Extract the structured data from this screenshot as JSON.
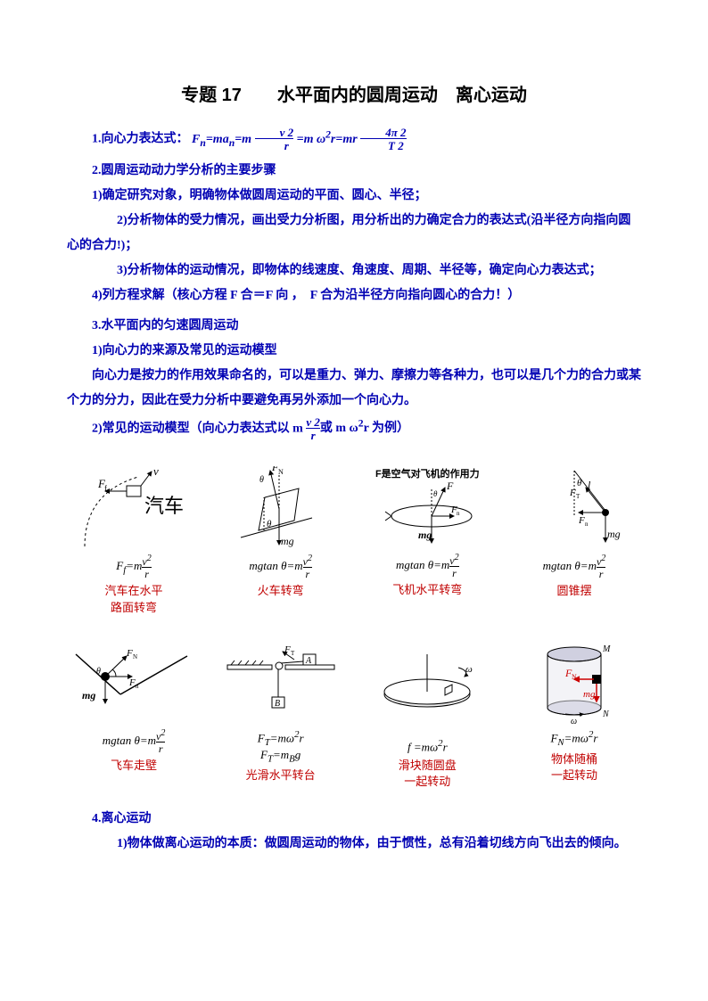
{
  "title": "专题 17　　水平面内的圆周运动　离心运动",
  "s1": {
    "head": "1.向心力表达式：",
    "formula_html": "F<sub>n</sub>=ma<sub>n</sub>=m <span class='frac'><span class='num'>v 2</span><span class='den'>r</span></span> =m ω<sup>2</sup>r=mr <span class='frac'><span class='num'>4π 2</span><span class='den'>T 2</span></span>"
  },
  "s2": {
    "head": "2.圆周运动动力学分析的主要步骤",
    "p1": "1)确定研究对象，明确物体做圆周运动的平面、圆心、半径；",
    "p2": "2)分析物体的受力情况，画出受力分析图，用分析出的力确定合力的表达式(沿半径方向指向圆心的合力!)；",
    "p3": "3)分析物体的运动情况，即物体的线速度、角速度、周期、半径等，确定向心力表达式；",
    "p4": "4)列方程求解（核心方程 F 合＝F 向 ，　F 合为沿半径方向指向圆心的合力！）"
  },
  "s3": {
    "head": "3.水平面内的匀速圆周运动",
    "p1": "1)向心力的来源及常见的运动模型",
    "p2": "向心力是按力的作用效果命名的，可以是重力、弹力、摩擦力等各种力，也可以是几个力的合力或某个力的分力，因此在受力分析中要避免再另外添加一个向心力。",
    "p3a": "2)常见的运动模型（向心力表达式以 m ",
    "p3b": "或 m ω<sup>2</sup>r 为例）",
    "frac_num": "v 2",
    "frac_den": "r"
  },
  "models_row1": [
    {
      "name": "car-turn",
      "formula": "F<sub>f</sub>=m<span class='frac'><span class='num'>v<sup>2</sup></span><span class='den'>r</span></span>",
      "label": "汽车在水平<br>路面转弯"
    },
    {
      "name": "train-turn",
      "formula": "mgtan θ=m<span class='frac'><span class='num'>v<sup>2</sup></span><span class='den'>r</span></span>",
      "label": "火车转弯"
    },
    {
      "name": "plane-turn",
      "formula": "mgtan θ=m<span class='frac'><span class='num'>v<sup>2</sup></span><span class='den'>r</span></span>",
      "label": "飞机水平转弯",
      "toplabel": "F是空气对飞机的作用力"
    },
    {
      "name": "conical-pendulum",
      "formula": "mgtan θ=m<span class='frac'><span class='num'>v<sup>2</sup></span><span class='den'>r</span></span>",
      "label": "圆锥摆"
    }
  ],
  "models_row2": [
    {
      "name": "wall-of-death",
      "formula": "mgtan θ=m<span class='frac'><span class='num'>v<sup>2</sup></span><span class='den'>r</span></span>",
      "label": "飞车走壁"
    },
    {
      "name": "smooth-turntable",
      "formula": "F<sub>T</sub>=mω<sup>2</sup>r<br>F<sub>T</sub>=m<sub>B</sub>g",
      "label": "光滑水平转台"
    },
    {
      "name": "block-on-disk",
      "formula": "f =mω<sup>2</sup>r",
      "label": "滑块随圆盘<br>一起转动"
    },
    {
      "name": "object-in-cylinder",
      "formula": "F<sub>N</sub>=mω<sup>2</sup>r",
      "label": "物体随桶<br>一起转动"
    }
  ],
  "s4": {
    "head": "4.离心运动",
    "p1": "1)物体做离心运动的本质：做圆周运动的物体，由于惯性，总有沿着切线方向飞出去的倾向。"
  },
  "colors": {
    "blue": "#0000b3",
    "red": "#c00000",
    "black": "#000000"
  }
}
